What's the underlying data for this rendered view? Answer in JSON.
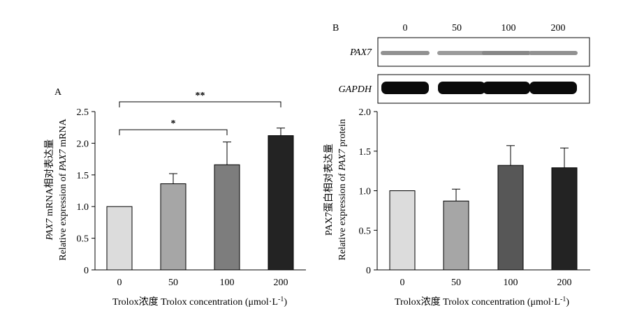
{
  "chart_data": [
    {
      "type": "bar",
      "panel": "A",
      "categories": [
        "0",
        "50",
        "100",
        "200"
      ],
      "values": [
        1.0,
        1.36,
        1.66,
        2.12
      ],
      "errors": [
        0,
        0.16,
        0.36,
        0.12
      ],
      "colors": [
        "#dcdcdc",
        "#a6a6a6",
        "#7d7d7d",
        "#232323"
      ],
      "ylim": [
        0,
        2.5
      ],
      "yticks": [
        "0",
        "0.5",
        "1.0",
        "1.5",
        "2.0",
        "2.5"
      ],
      "ylabel_line1_italic": "PAX7",
      "ylabel_line1_rest": " mRNA相对表达量",
      "ylabel_line2_prefix": "Relative expression of ",
      "ylabel_line2_italic": "PAX7",
      "ylabel_line2_suffix": " mRNA",
      "xlabel": "Trolox浓度 Trolox concentration (μmol·L",
      "xlabel_sup": "-1",
      "xlabel_close": ")",
      "significance": [
        {
          "from": "0",
          "to": "100",
          "label": "*"
        },
        {
          "from": "0",
          "to": "200",
          "label": "**"
        }
      ]
    },
    {
      "type": "bar",
      "panel": "B",
      "categories": [
        "0",
        "50",
        "100",
        "200"
      ],
      "values": [
        1.0,
        0.87,
        1.32,
        1.29
      ],
      "errors": [
        0,
        0.15,
        0.25,
        0.25
      ],
      "colors": [
        "#dcdcdc",
        "#a6a6a6",
        "#575757",
        "#232323"
      ],
      "ylim": [
        0,
        2.0
      ],
      "yticks": [
        "0",
        "0.5",
        "1.0",
        "1.5",
        "2.0"
      ],
      "ylabel_line1": "PAX7蛋白相对表达量",
      "ylabel_line2_prefix": "Relative expression of ",
      "ylabel_line2_italic": "PAX7",
      "ylabel_line2_suffix": " protein",
      "xlabel": "Trolox浓度 Trolox concentration (μmol·L",
      "xlabel_sup": "-1",
      "xlabel_close": ")",
      "blot": {
        "lanes": [
          "0",
          "50",
          "100",
          "200"
        ],
        "bands": [
          {
            "name": "PAX7",
            "intensity": [
              0.55,
              0.5,
              0.6,
              0.55
            ]
          },
          {
            "name": "GAPDH",
            "intensity": [
              1.0,
              1.0,
              1.0,
              1.0
            ]
          }
        ]
      }
    }
  ]
}
